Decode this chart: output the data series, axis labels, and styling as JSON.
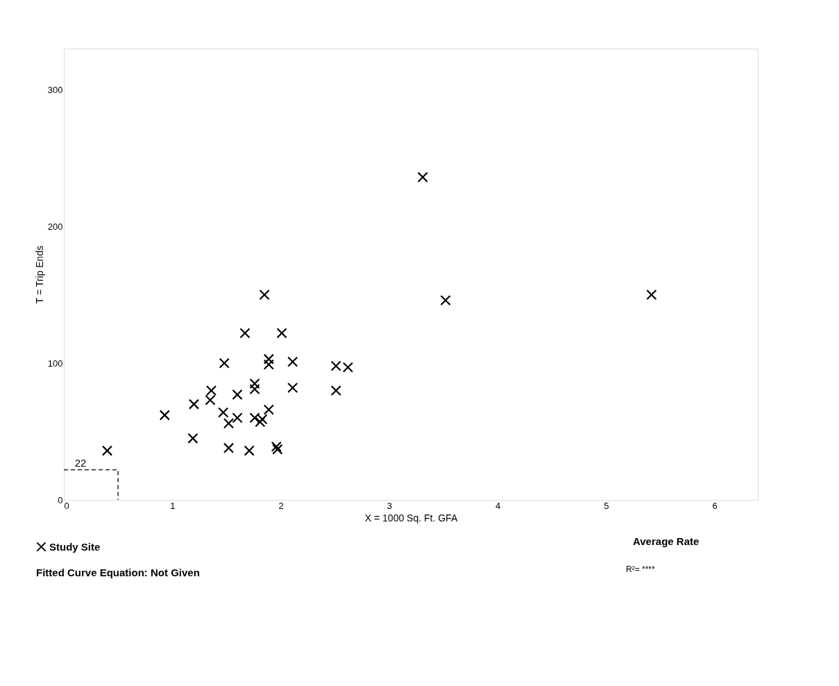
{
  "chart_data": {
    "type": "scatter",
    "xlabel": "X = 1000 Sq. Ft. GFA",
    "ylabel": "T = Trip Ends",
    "xlim": [
      0,
      6.4
    ],
    "xticks": [
      0,
      1,
      2,
      3,
      4,
      5,
      6
    ],
    "ylim": [
      0,
      330
    ],
    "yticks": [
      0,
      100,
      200,
      300
    ],
    "grid": false,
    "legend": "bottom left",
    "marker": "cross",
    "series": [
      {
        "name": "Study Site",
        "color": "#000000",
        "x": [
          1.85,
          1.67,
          2.01,
          1.48,
          1.89,
          1.89,
          2.11,
          2.51,
          2.62,
          2.11,
          2.51,
          1.76,
          1.76,
          1.36,
          1.35,
          1.6,
          1.2,
          0.93,
          1.47,
          1.6,
          1.52,
          1.76,
          1.81,
          1.83,
          1.89,
          1.19,
          1.52,
          1.71,
          1.96,
          1.97,
          0.4,
          3.31,
          3.52,
          5.42
        ],
        "values": [
          150,
          122,
          122,
          100,
          103,
          99,
          101,
          98,
          97,
          82,
          80,
          85,
          81,
          80,
          73,
          77,
          70,
          62,
          64,
          60,
          56,
          60,
          57,
          59,
          66,
          45,
          38,
          36,
          39,
          37,
          36,
          236,
          146,
          150
        ]
      },
      {
        "type": "line",
        "marker": "none",
        "line_style": "dashed",
        "color": "#000000",
        "x": [
          0,
          0.5,
          0.5
        ],
        "values": [
          22,
          22,
          0
        ]
      }
    ],
    "annotations": [
      {
        "text": "22",
        "x": 0.1,
        "y": 22
      },
      "Fitted Curve Equation: Not Given",
      "Average Rate",
      "R²= ****"
    ]
  }
}
